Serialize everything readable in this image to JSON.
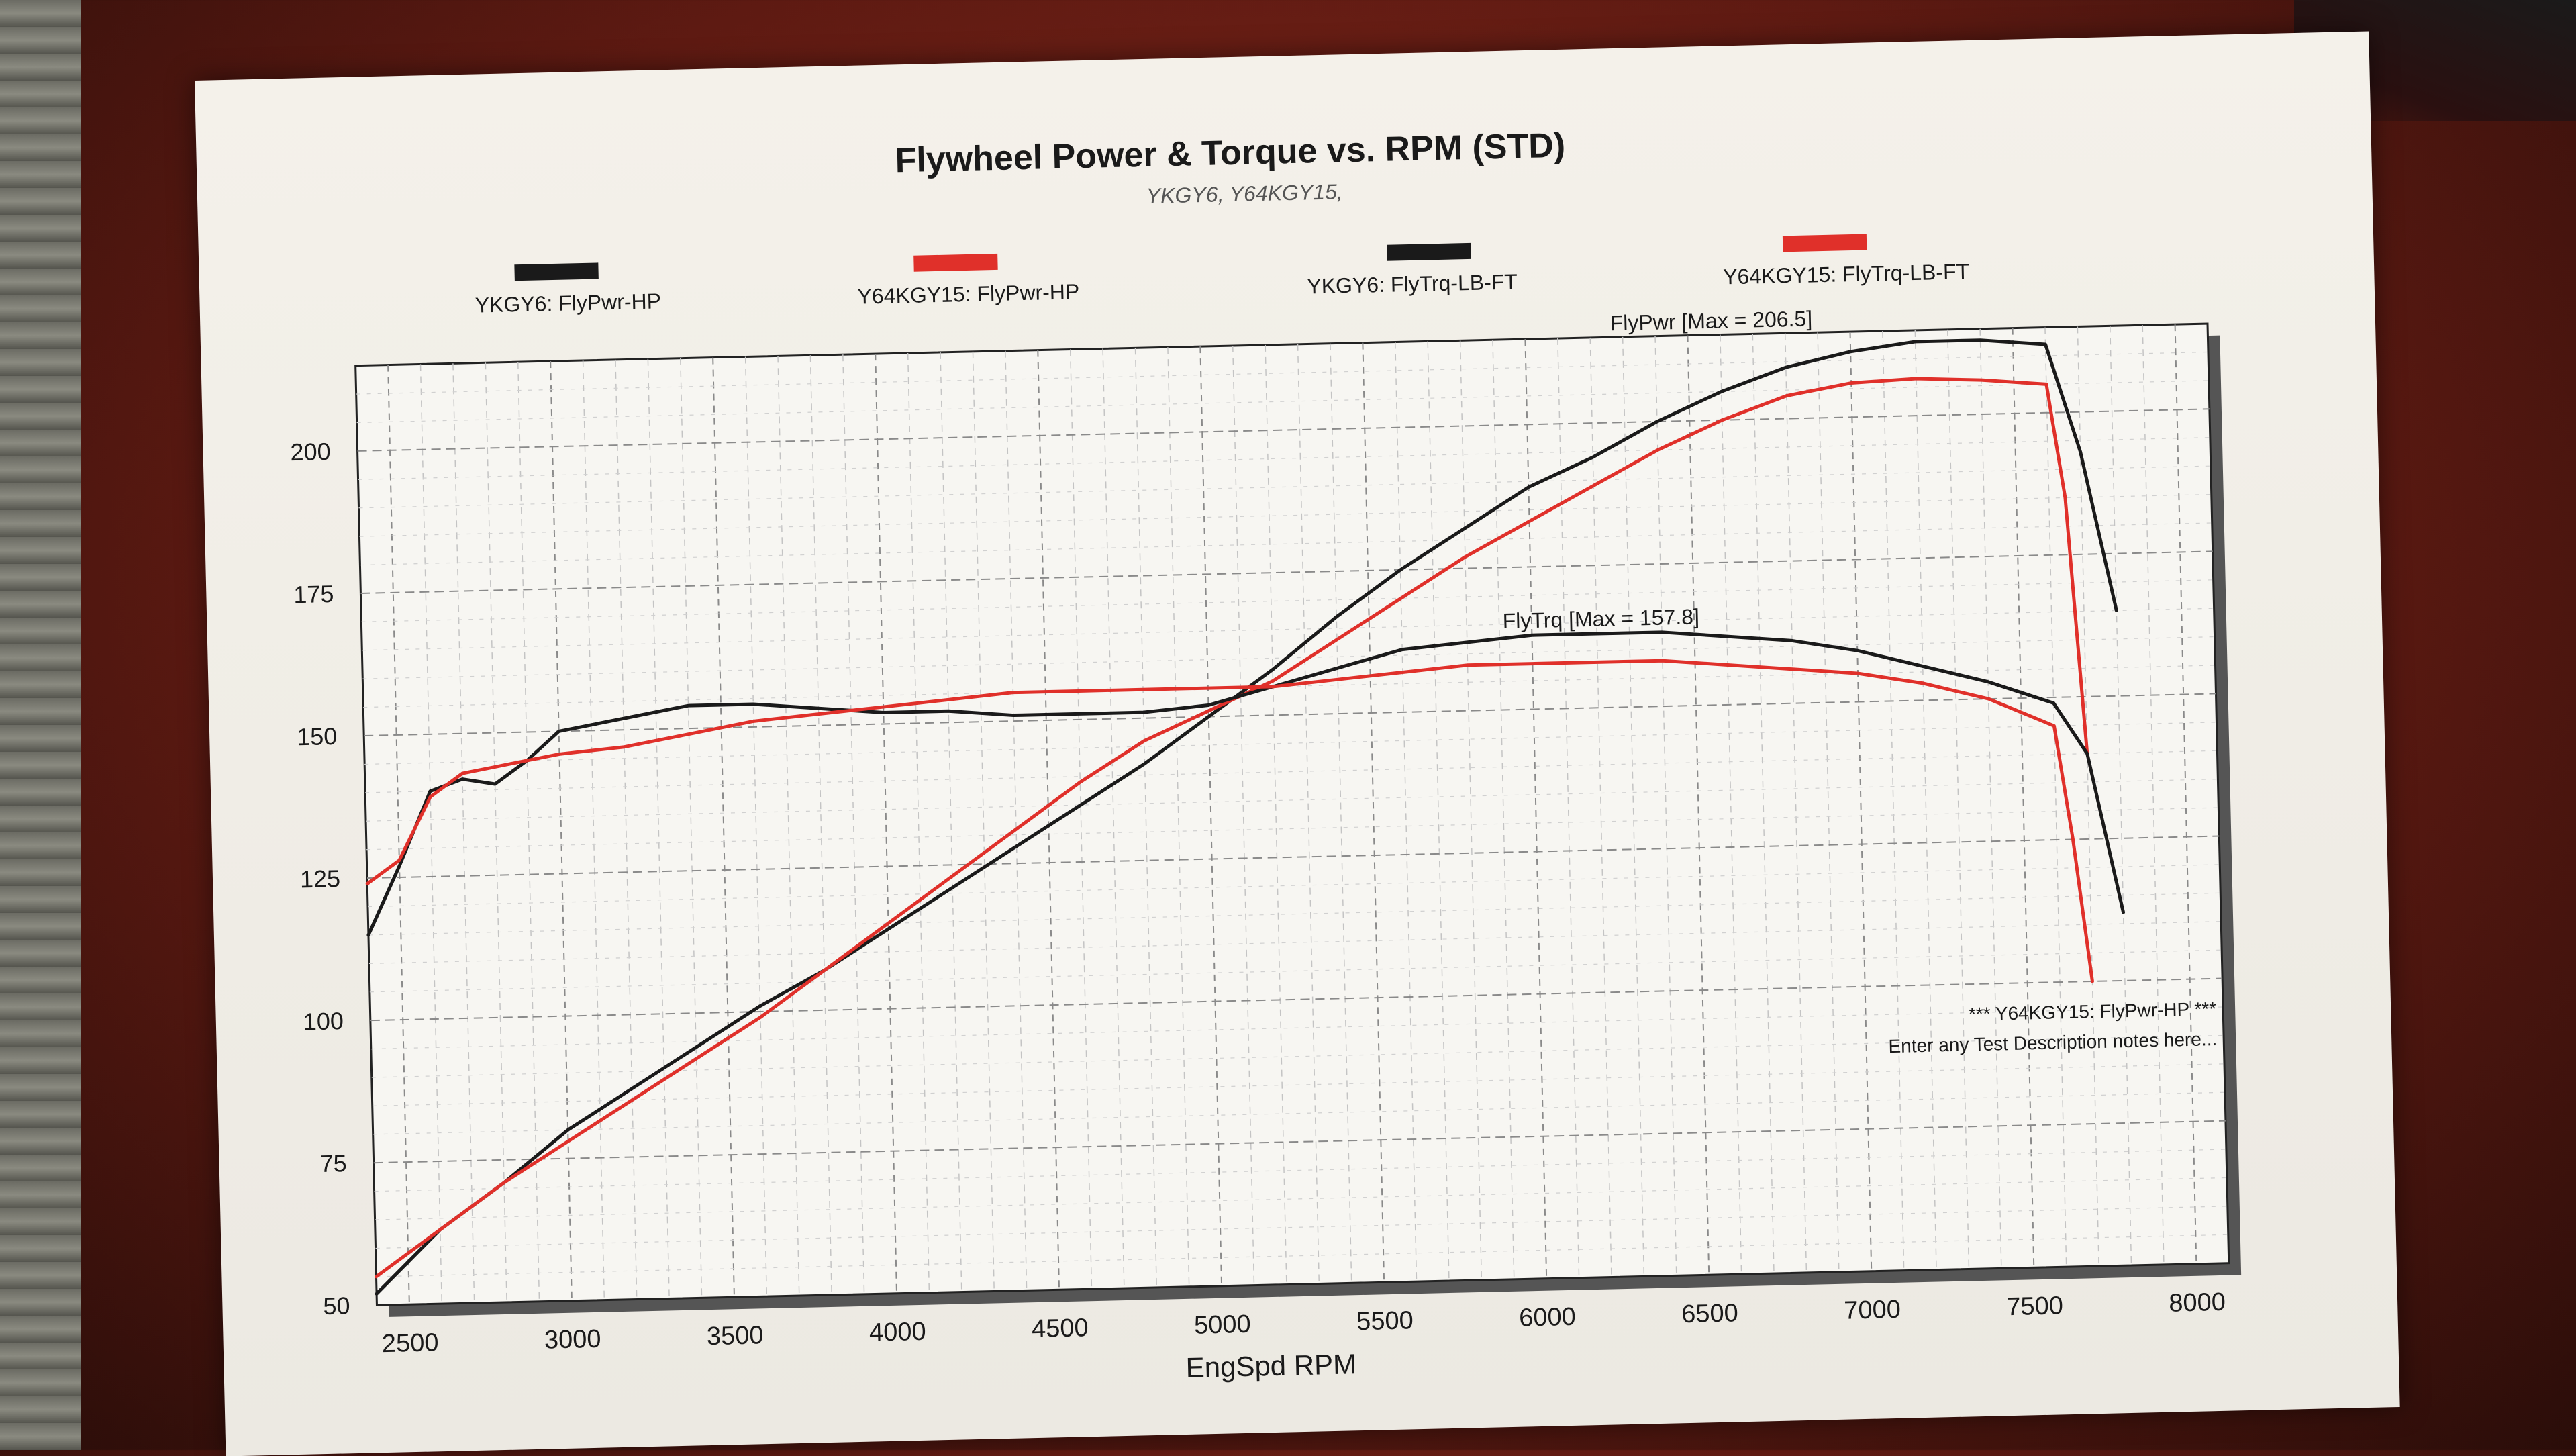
{
  "chart_data": {
    "type": "line",
    "title": "Flywheel Power & Torque vs. RPM (STD)",
    "subtitle": "YKGY6, Y64KGY15,",
    "xlabel": "EngSpd RPM",
    "ylabel": "",
    "xlim": [
      2400,
      8100
    ],
    "ylim": [
      50,
      215
    ],
    "x_ticks": [
      "2500",
      "3000",
      "3500",
      "4000",
      "4500",
      "5000",
      "5500",
      "6000",
      "6500",
      "7000",
      "7500",
      "8000"
    ],
    "y_ticks": [
      "50",
      "75",
      "100",
      "125",
      "150",
      "175",
      "200"
    ],
    "grid": true,
    "legend_position": "top",
    "legend": [
      {
        "label": "YKGY6: FlyPwr-HP",
        "color": "#1a1a1a"
      },
      {
        "label": "Y64KGY15: FlyPwr-HP",
        "color": "#e0302a"
      },
      {
        "label": "YKGY6: FlyTrq-LB-FT",
        "color": "#1a1a1a"
      },
      {
        "label": "Y64KGY15: FlyTrq-LB-FT",
        "color": "#e0302a"
      }
    ],
    "annotations": {
      "power_max": "FlyPwr [Max = 206.5]",
      "torque_max": "FlyTrq [Max = 157.8]",
      "note_line1": "*** Y64KGY15: FlyPwr-HP    ***",
      "note_line2": "Enter any Test Description notes here..."
    },
    "series": [
      {
        "name": "YKGY6: FlyPwr-HP",
        "color": "#1a1a1a",
        "x": [
          2400,
          2600,
          2800,
          3000,
          3200,
          3400,
          3600,
          3800,
          4000,
          4200,
          4400,
          4600,
          4800,
          5000,
          5200,
          5400,
          5600,
          5800,
          6000,
          6200,
          6400,
          6600,
          6800,
          7000,
          7200,
          7400,
          7600,
          7700,
          7800
        ],
        "values": [
          52,
          63,
          71,
          80,
          87,
          94,
          101,
          107,
          114,
          121,
          128,
          135,
          142,
          150,
          158,
          167,
          175,
          182,
          189,
          194,
          200,
          205,
          209,
          211.5,
          213,
          213,
          212,
          193,
          165
        ]
      },
      {
        "name": "Y64KGY15: FlyPwr-HP",
        "color": "#e0302a",
        "x": [
          2400,
          2600,
          2800,
          3000,
          3200,
          3400,
          3600,
          3800,
          4000,
          4200,
          4400,
          4600,
          4800,
          5000,
          5200,
          5400,
          5600,
          5800,
          6000,
          6200,
          6400,
          6600,
          6800,
          7000,
          7200,
          7400,
          7600,
          7650,
          7700
        ],
        "values": [
          55,
          63,
          71,
          78,
          85,
          92,
          99,
          107,
          115,
          123,
          131,
          139,
          146,
          151,
          156,
          163,
          170,
          177,
          183,
          189,
          195,
          200,
          204,
          206,
          206.5,
          206,
          205,
          185,
          140
        ]
      },
      {
        "name": "YKGY6: FlyTrq-LB-FT",
        "color": "#1a1a1a",
        "x": [
          2400,
          2500,
          2600,
          2700,
          2800,
          2900,
          3000,
          3200,
          3400,
          3600,
          3800,
          4000,
          4200,
          4400,
          4600,
          4800,
          5000,
          5200,
          5400,
          5600,
          5800,
          6000,
          6200,
          6400,
          6600,
          6800,
          7000,
          7200,
          7400,
          7600,
          7700,
          7800
        ],
        "values": [
          115,
          127,
          140,
          142,
          141,
          145,
          150,
          152,
          154,
          154,
          153,
          152,
          152,
          151,
          151,
          151,
          152,
          155,
          158,
          161,
          162,
          163,
          163,
          163,
          162,
          161,
          159,
          156,
          153,
          149,
          140,
          112
        ]
      },
      {
        "name": "Y64KGY15: FlyTrq-LB-FT",
        "color": "#e0302a",
        "x": [
          2400,
          2500,
          2600,
          2700,
          2800,
          2900,
          3000,
          3200,
          3400,
          3600,
          3800,
          4000,
          4200,
          4400,
          4600,
          4800,
          5000,
          5200,
          5400,
          5600,
          5800,
          6000,
          6200,
          6400,
          6600,
          6800,
          7000,
          7200,
          7400,
          7600,
          7650,
          7700
        ],
        "values": [
          124,
          128,
          139,
          143,
          144,
          145,
          146,
          147,
          149,
          151,
          152,
          153,
          154,
          155,
          155,
          155,
          155,
          155,
          156,
          157,
          158,
          158,
          158,
          158,
          157,
          156,
          155,
          153,
          150,
          145,
          125,
          100
        ]
      }
    ]
  }
}
